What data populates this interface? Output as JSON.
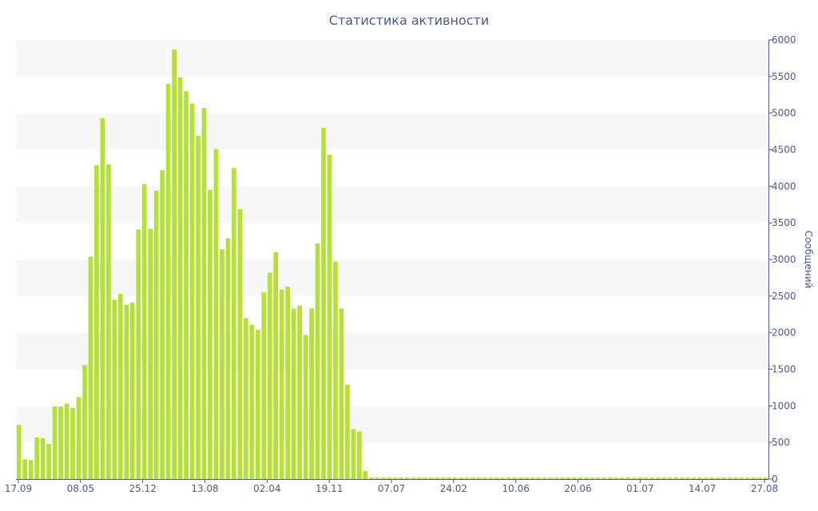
{
  "chart_data": {
    "type": "bar",
    "title": "Статистика активности",
    "xlabel": "",
    "ylabel": "Сообщений",
    "y_axis_position": "right",
    "ylim": [
      0,
      6000
    ],
    "y_ticks": [
      0,
      500,
      1000,
      1500,
      2000,
      2500,
      3000,
      3500,
      4000,
      4500,
      5000,
      5500,
      6000
    ],
    "x_tick_labels": [
      "17.09",
      "08.05",
      "25.12",
      "13.08",
      "02.04",
      "19.11",
      "07.07",
      "24.02",
      "10.06",
      "20.06",
      "01.07",
      "14.07",
      "27.08"
    ],
    "grid": "alternating horizontal bands",
    "legend": "none",
    "colors": {
      "bar": "#b5e035",
      "band": "#f7f7f7",
      "text": "#4a5a8c",
      "axis": "#4a5a8c"
    },
    "values": [
      740,
      270,
      260,
      570,
      560,
      480,
      990,
      990,
      1030,
      970,
      1120,
      1560,
      3040,
      4290,
      4930,
      4300,
      2450,
      2530,
      2380,
      2410,
      3410,
      4030,
      3420,
      3940,
      4220,
      5400,
      5870,
      5490,
      5300,
      5130,
      4690,
      5070,
      3950,
      4510,
      3140,
      3290,
      4250,
      3690,
      2200,
      2110,
      2040,
      2550,
      2820,
      3100,
      2590,
      2630,
      2330,
      2370,
      1970,
      2330,
      3220,
      4800,
      4430,
      2970,
      2330,
      1290,
      680,
      650,
      110,
      20,
      20,
      20,
      20,
      20,
      20,
      20,
      20,
      20,
      20,
      20,
      20,
      20,
      20,
      20,
      20,
      20,
      20,
      20,
      20,
      20,
      20,
      20,
      20,
      20,
      20,
      20,
      20,
      20,
      20,
      20,
      20,
      20,
      20,
      20,
      20,
      20,
      20,
      20,
      20,
      20,
      20,
      20,
      20,
      20,
      20,
      20,
      20,
      20,
      20,
      20,
      20,
      20,
      20,
      20,
      20,
      20,
      20,
      20,
      20,
      20,
      20,
      20,
      20,
      20,
      20,
      20
    ]
  }
}
